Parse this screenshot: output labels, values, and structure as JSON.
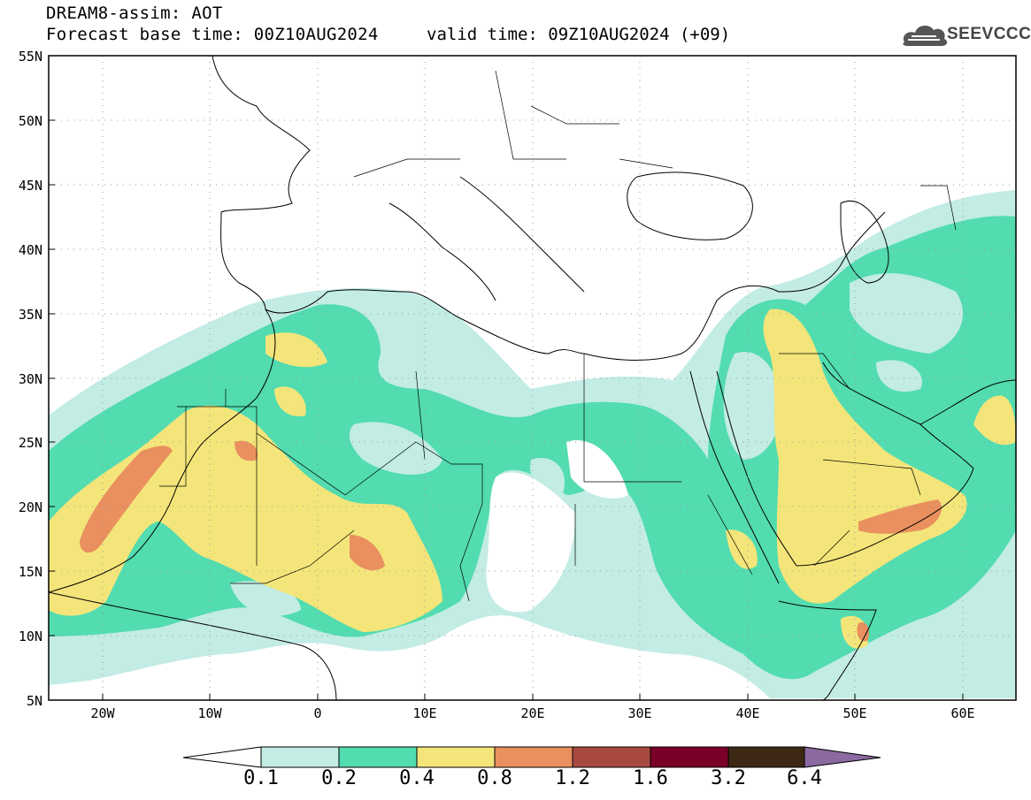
{
  "title": {
    "line1": "DREAM8-assim: AOT",
    "line2": "Forecast base time: 00Z10AUG2024",
    "valid": "valid time: 09Z10AUG2024 (+09)"
  },
  "logo": {
    "text": "SEEVCCC",
    "icon": "cloud-logo-icon"
  },
  "map": {
    "lat_labels": [
      "55N",
      "50N",
      "45N",
      "40N",
      "35N",
      "30N",
      "25N",
      "20N",
      "15N",
      "10N",
      "5N"
    ],
    "lon_labels": [
      "20W",
      "10W",
      "0",
      "10E",
      "20E",
      "30E",
      "40E",
      "50E",
      "60E"
    ],
    "lon_range": [
      -25,
      65
    ],
    "lat_range": [
      5,
      55
    ],
    "grid": "dotted"
  },
  "colorbar": {
    "labels": [
      "0.1",
      "0.2",
      "0.4",
      "0.8",
      "1.2",
      "1.6",
      "3.2",
      "6.4"
    ],
    "colors": [
      "#c2ece4",
      "#52dcb0",
      "#f4e57a",
      "#e9905e",
      "#a84a40",
      "#7a0028",
      "#3c2814",
      "#8a6aa0"
    ],
    "low_color": "#ffffff"
  },
  "colors": {
    "aot_01": "#c2ece4",
    "aot_02": "#52dcb0",
    "aot_04": "#f4e57a",
    "aot_08": "#e9905e"
  }
}
